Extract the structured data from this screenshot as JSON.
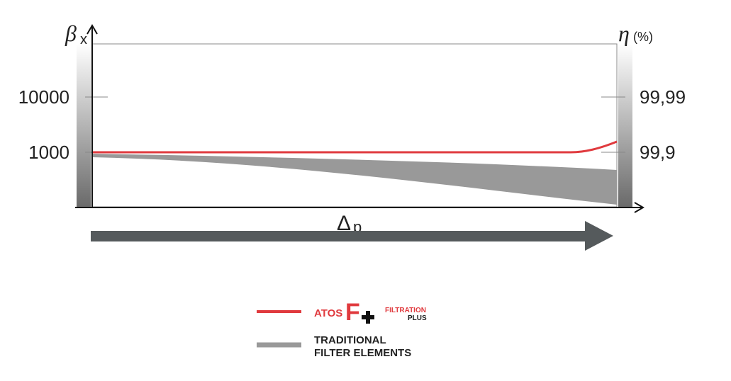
{
  "axes": {
    "left_symbol": "β",
    "left_subscript": "x",
    "right_symbol": "η",
    "right_unit": "(%)",
    "left_ticks": [
      "10000",
      "1000"
    ],
    "right_ticks": [
      "99,99",
      "99,9"
    ],
    "x_symbol": "Δ",
    "x_subscript": "p"
  },
  "legend": {
    "atos": {
      "brand": "ATOS",
      "logo": "F",
      "line1": "FILTRATION",
      "line2": "PLUS"
    },
    "traditional": {
      "line1": "TRADITIONAL",
      "line2": "FILTER ELEMENTS"
    }
  }
}
